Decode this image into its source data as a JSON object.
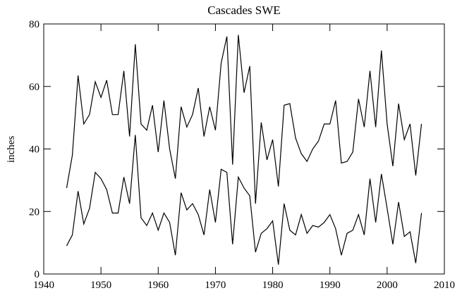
{
  "chart_data": {
    "type": "line",
    "title": "Cascades SWE",
    "y_label": "inches",
    "x": [
      1944,
      1945,
      1946,
      1947,
      1948,
      1949,
      1950,
      1951,
      1952,
      1953,
      1954,
      1955,
      1956,
      1957,
      1958,
      1959,
      1960,
      1961,
      1962,
      1963,
      1964,
      1965,
      1966,
      1967,
      1968,
      1969,
      1970,
      1971,
      1972,
      1973,
      1974,
      1975,
      1976,
      1977,
      1978,
      1979,
      1980,
      1981,
      1982,
      1983,
      1984,
      1985,
      1986,
      1987,
      1988,
      1989,
      1990,
      1991,
      1992,
      1993,
      1994,
      1995,
      1996,
      1997,
      1998,
      1999,
      2000,
      2001,
      2002,
      2003,
      2004,
      2005,
      2006
    ],
    "series": [
      {
        "color": "#000000",
        "values": [
          27.5,
          38,
          63.5,
          48,
          51,
          61.5,
          56.5,
          62,
          51,
          51,
          65,
          44,
          73.5,
          48,
          46,
          54,
          39,
          55.5,
          40,
          30.5,
          53.5,
          47,
          51,
          59.5,
          44,
          53.5,
          46,
          67.5,
          76,
          35,
          76.5,
          58,
          66.5,
          22.5,
          48.5,
          36.5,
          43,
          28,
          54,
          54.5,
          43.5,
          38.5,
          36,
          40,
          42.5,
          48,
          48,
          55.5,
          35.5,
          36,
          39,
          56,
          47,
          65,
          47,
          71.5,
          48,
          34.5,
          54.5,
          43,
          48,
          31.5,
          48
        ]
      },
      {
        "color": "#000000",
        "values": [
          9,
          12.5,
          26.5,
          16,
          21,
          32.5,
          30.5,
          27,
          19.5,
          19.5,
          31,
          22.5,
          44.5,
          18,
          15.5,
          19.5,
          14,
          19.5,
          16.5,
          6,
          26,
          20.5,
          22.5,
          19,
          12.5,
          27,
          16.5,
          33.5,
          32.5,
          9.5,
          31,
          27.5,
          25,
          7,
          13,
          14.5,
          17,
          3,
          22.5,
          14,
          12.5,
          19,
          13,
          15.5,
          15,
          16.5,
          19,
          14.5,
          6,
          13,
          14,
          19,
          12.5,
          30.5,
          16.5,
          32,
          21,
          9.5,
          23,
          12,
          13.5,
          3.5,
          19.5
        ]
      }
    ],
    "xlim": [
      1940,
      2010
    ],
    "xticks": [
      1940,
      1950,
      1960,
      1970,
      1980,
      1990,
      2000,
      2010
    ],
    "ylim": [
      0,
      80
    ],
    "yticks": [
      0,
      20,
      40,
      60,
      80
    ]
  }
}
